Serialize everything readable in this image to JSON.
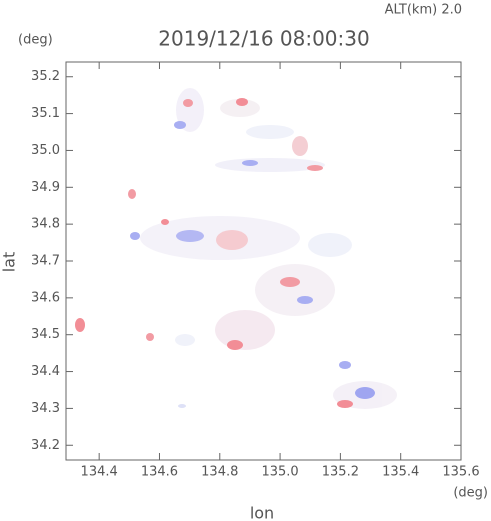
{
  "chart_data": {
    "type": "map",
    "title": "2019/12/16 08:00:30",
    "subtitle": "ALT(km) 2.0",
    "y_unit": "(deg)",
    "x_unit": "(deg)",
    "xlabel": "lon",
    "ylabel": "lat",
    "xlim": [
      134.29,
      135.6
    ],
    "ylim": [
      34.16,
      35.24
    ],
    "xticks": [
      134.4,
      134.6,
      134.8,
      {
        "value": 135,
        "label": "135.0"
      },
      135.2,
      135.4,
      135.6
    ],
    "yticks": [
      34.2,
      34.3,
      34.4,
      34.5,
      34.6,
      34.7,
      34.8,
      34.9,
      {
        "value": 35,
        "label": "35.0"
      },
      35.1,
      35.2
    ]
  }
}
